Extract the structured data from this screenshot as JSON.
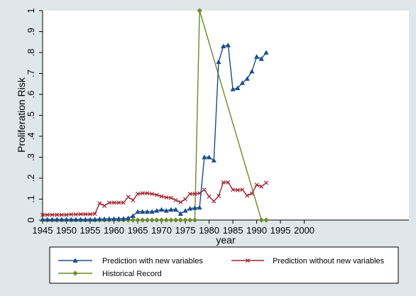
{
  "chart_data": {
    "type": "line",
    "title": "",
    "xlabel": "year",
    "ylabel": "Proliferation Risk",
    "xlim": [
      1945,
      2022
    ],
    "ylim": [
      0,
      1
    ],
    "x_ticks": [
      1945,
      1950,
      1955,
      1960,
      1965,
      1970,
      1975,
      1980,
      1985,
      1990,
      1995,
      2000
    ],
    "x_tick_labels": [
      "1945",
      "1950",
      "1955",
      "1960",
      "1965",
      "1970",
      "1975",
      "1980",
      "1985",
      "1990",
      "1995",
      "2000"
    ],
    "y_ticks": [
      0,
      0.1,
      0.2,
      0.3,
      0.4,
      0.5,
      0.6,
      0.7,
      0.8,
      0.9,
      1
    ],
    "y_tick_labels": [
      "0",
      ".1",
      ".2",
      ".3",
      ".4",
      ".5",
      ".6",
      ".7",
      ".8",
      ".9",
      "1"
    ],
    "grid": false,
    "legend_position": "bottom",
    "series": [
      {
        "name": "Prediction with new variables",
        "color": "#1a4d8a",
        "marker": "triangle",
        "x": [
          1945,
          1946,
          1947,
          1948,
          1949,
          1950,
          1951,
          1952,
          1953,
          1954,
          1955,
          1956,
          1957,
          1958,
          1959,
          1960,
          1961,
          1962,
          1963,
          1964,
          1965,
          1966,
          1967,
          1968,
          1969,
          1970,
          1971,
          1972,
          1973,
          1974,
          1975,
          1976,
          1977,
          1978,
          1979,
          1980,
          1981,
          1982,
          1983,
          1984,
          1985,
          1986,
          1987,
          1988,
          1989,
          1990,
          1991,
          1992
        ],
        "y": [
          0.003,
          0.003,
          0.003,
          0.003,
          0.003,
          0.003,
          0.003,
          0.003,
          0.003,
          0.003,
          0.003,
          0.003,
          0.005,
          0.005,
          0.006,
          0.006,
          0.007,
          0.007,
          0.01,
          0.02,
          0.04,
          0.04,
          0.04,
          0.04,
          0.045,
          0.05,
          0.045,
          0.05,
          0.05,
          0.03,
          0.045,
          0.055,
          0.058,
          0.06,
          0.3,
          0.3,
          0.285,
          0.755,
          0.83,
          0.835,
          0.625,
          0.63,
          0.655,
          0.675,
          0.71,
          0.78,
          0.77,
          0.8
        ]
      },
      {
        "name": "Prediction without new variables",
        "color": "#a3242e",
        "marker": "x",
        "x": [
          1945,
          1946,
          1947,
          1948,
          1949,
          1950,
          1951,
          1952,
          1953,
          1954,
          1955,
          1956,
          1957,
          1958,
          1959,
          1960,
          1961,
          1962,
          1963,
          1964,
          1965,
          1966,
          1967,
          1968,
          1969,
          1970,
          1971,
          1972,
          1973,
          1974,
          1975,
          1976,
          1977,
          1978,
          1979,
          1980,
          1981,
          1982,
          1983,
          1984,
          1985,
          1986,
          1987,
          1988,
          1989,
          1990,
          1991,
          1992
        ],
        "y": [
          0.025,
          0.025,
          0.025,
          0.025,
          0.025,
          0.025,
          0.027,
          0.027,
          0.028,
          0.028,
          0.028,
          0.03,
          0.08,
          0.068,
          0.083,
          0.083,
          0.083,
          0.083,
          0.11,
          0.095,
          0.125,
          0.128,
          0.128,
          0.125,
          0.12,
          0.113,
          0.108,
          0.106,
          0.095,
          0.085,
          0.1,
          0.125,
          0.125,
          0.128,
          0.145,
          0.112,
          0.09,
          0.115,
          0.18,
          0.18,
          0.145,
          0.143,
          0.145,
          0.117,
          0.127,
          0.168,
          0.16,
          0.178
        ]
      },
      {
        "name": "Historical Record",
        "color": "#6c8a2a",
        "marker": "diamond",
        "x": [
          1945,
          1946,
          1947,
          1948,
          1949,
          1950,
          1951,
          1952,
          1953,
          1954,
          1955,
          1956,
          1957,
          1958,
          1959,
          1960,
          1961,
          1962,
          1963,
          1964,
          1965,
          1966,
          1967,
          1968,
          1969,
          1970,
          1971,
          1972,
          1973,
          1974,
          1975,
          1976,
          1977,
          1978,
          1991,
          1992
        ],
        "y": [
          0,
          0,
          0,
          0,
          0,
          0,
          0,
          0,
          0,
          0,
          0,
          0,
          0,
          0,
          0,
          0,
          0,
          0,
          0,
          0,
          0,
          0,
          0,
          0,
          0,
          0,
          0,
          0,
          0,
          0,
          0,
          0,
          0,
          1,
          0,
          0
        ]
      }
    ]
  }
}
